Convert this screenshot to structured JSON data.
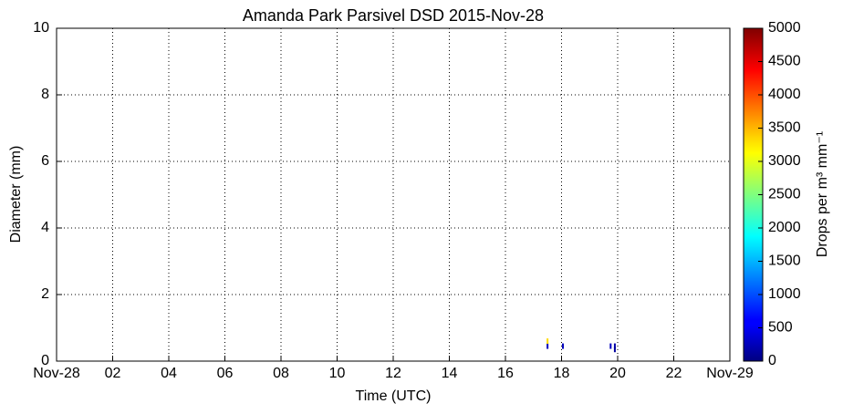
{
  "chart_data": {
    "type": "heatmap",
    "title": "Amanda Park Parsivel DSD 2015-Nov-28",
    "xlabel": "Time (UTC)",
    "ylabel": "Diameter (mm)",
    "colorbar_label": "Drops per m³ mm⁻¹",
    "x": [
      17.5,
      17.5,
      18.05,
      19.75,
      19.9,
      19.9
    ],
    "y": [
      0.45,
      0.6,
      0.45,
      0.45,
      0.45,
      0.35
    ],
    "values": [
      300,
      3300,
      300,
      300,
      200,
      150
    ],
    "xlim": [
      0,
      24
    ],
    "xticks": [
      {
        "value": 0,
        "label": "Nov-28"
      },
      {
        "value": 2,
        "label": "02"
      },
      {
        "value": 4,
        "label": "04"
      },
      {
        "value": 6,
        "label": "06"
      },
      {
        "value": 8,
        "label": "08"
      },
      10,
      12,
      14,
      16,
      18,
      20,
      22,
      {
        "value": 24,
        "label": "Nov-29"
      }
    ],
    "ylim": [
      0,
      10
    ],
    "yticks": [
      0,
      2,
      4,
      6,
      8,
      10
    ],
    "clim": [
      0,
      5000
    ],
    "cticks": [
      0,
      500,
      1000,
      1500,
      2000,
      2500,
      3000,
      3500,
      4000,
      4500,
      5000
    ],
    "colormap": "jet",
    "grid": true
  }
}
